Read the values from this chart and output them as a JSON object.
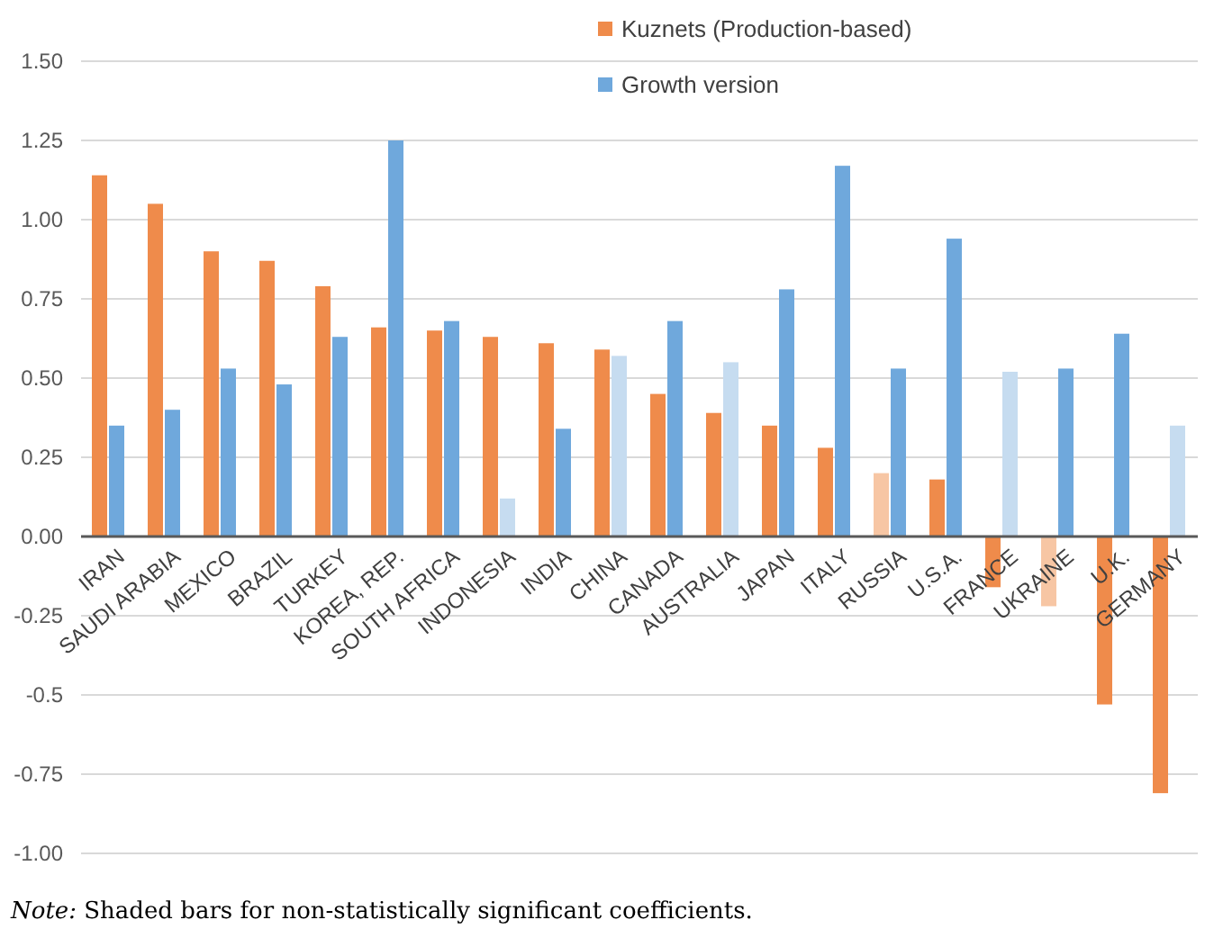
{
  "chart_data": {
    "type": "bar",
    "categories": [
      "IRAN",
      "SAUDI ARABIA",
      "MEXICO",
      "BRAZIL",
      "TURKEY",
      "KOREA, REP.",
      "SOUTH AFRICA",
      "INDONESIA",
      "INDIA",
      "CHINA",
      "CANADA",
      "AUSTRALIA",
      "JAPAN",
      "ITALY",
      "RUSSIA",
      "U.S.A.",
      "FRANCE",
      "UKRAINE",
      "U.K.",
      "GERMANY"
    ],
    "series": [
      {
        "name": "Kuznets (Production-based)",
        "color": "#ef8b4b",
        "colors": [
          "#ef8b4b",
          "#ef8b4b",
          "#ef8b4b",
          "#ef8b4b",
          "#ef8b4b",
          "#ef8b4b",
          "#ef8b4b",
          "#ef8b4b",
          "#ef8b4b",
          "#ef8b4b",
          "#ef8b4b",
          "#ef8b4b",
          "#ef8b4b",
          "#ef8b4b",
          "#f7c6a4",
          "#ef8b4b",
          "#ef8b4b",
          "#f7c6a4",
          "#ef8b4b",
          "#ef8b4b"
        ],
        "values": [
          1.14,
          1.05,
          0.9,
          0.87,
          0.79,
          0.66,
          0.65,
          0.63,
          0.61,
          0.59,
          0.45,
          0.39,
          0.35,
          0.28,
          0.2,
          0.18,
          -0.16,
          -0.22,
          -0.53,
          -0.81
        ]
      },
      {
        "name": "Growth version",
        "color": "#6fa8dc",
        "colors": [
          "#6fa8dc",
          "#6fa8dc",
          "#6fa8dc",
          "#6fa8dc",
          "#6fa8dc",
          "#6fa8dc",
          "#6fa8dc",
          "#c6dcf0",
          "#6fa8dc",
          "#c6dcf0",
          "#6fa8dc",
          "#c6dcf0",
          "#6fa8dc",
          "#6fa8dc",
          "#6fa8dc",
          "#6fa8dc",
          "#c6dcf0",
          "#6fa8dc",
          "#6fa8dc",
          "#c6dcf0"
        ],
        "values": [
          0.35,
          0.4,
          0.53,
          0.48,
          0.63,
          1.25,
          0.68,
          0.12,
          0.34,
          0.57,
          0.68,
          0.55,
          0.78,
          1.17,
          0.53,
          0.94,
          0.52,
          0.53,
          0.64,
          0.35
        ]
      }
    ],
    "ylim": [
      -1,
      1.5
    ],
    "yticks": [
      {
        "value": -1,
        "label": "-1.00"
      },
      {
        "value": -0.75,
        "label": "-0.75"
      },
      {
        "value": -0.5,
        "label": "-0.5"
      },
      {
        "value": -0.25,
        "label": "-0.25"
      },
      {
        "value": 0,
        "label": "0.00"
      },
      {
        "value": 0.25,
        "label": "0.25"
      },
      {
        "value": 0.5,
        "label": "0.50"
      },
      {
        "value": 0.75,
        "label": "0.75"
      },
      {
        "value": 1,
        "label": "1.00"
      },
      {
        "value": 1.25,
        "label": "1.25"
      },
      {
        "value": 1.5,
        "label": "1.50"
      }
    ],
    "grid": "y",
    "legend": "top",
    "annotations": [
      "Note: Shaded bars for non-statistically significant coefficients."
    ]
  }
}
